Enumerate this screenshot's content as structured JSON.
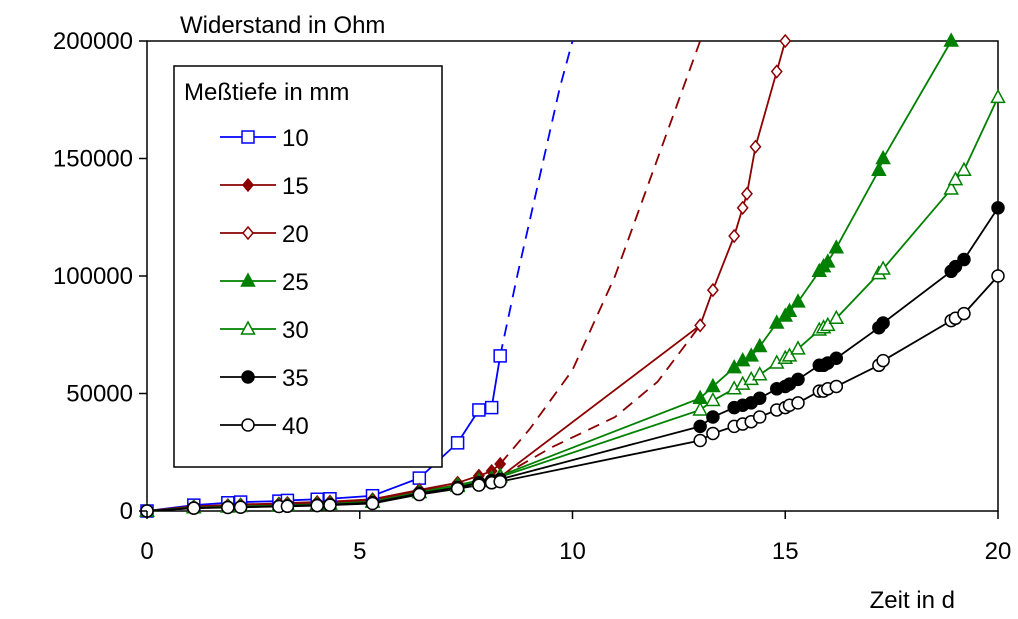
{
  "chart_data": {
    "type": "line",
    "title": "",
    "ylabel": "Widerstand in Ohm",
    "xlabel": "Zeit in d",
    "xlim": [
      0,
      20
    ],
    "ylim": [
      0,
      200000
    ],
    "x_ticks": [
      0,
      5,
      10,
      15,
      20
    ],
    "y_ticks": [
      0,
      50000,
      100000,
      150000,
      200000
    ],
    "x_tick_labels": [
      "0",
      "5",
      "10",
      "15",
      "20"
    ],
    "y_tick_labels": [
      "0",
      "50000",
      "100000",
      "150000",
      "200000"
    ],
    "grid": false,
    "legend": {
      "title": "Meßtiefe in mm",
      "placement": "upper-left"
    },
    "series": [
      {
        "name": "10",
        "color": "#0000ff",
        "marker": "square-open",
        "points": [
          [
            0,
            0
          ],
          [
            1.1,
            2500
          ],
          [
            1.9,
            3500
          ],
          [
            2.2,
            3800
          ],
          [
            3.1,
            4200
          ],
          [
            3.3,
            4500
          ],
          [
            4.0,
            5000
          ],
          [
            4.3,
            5200
          ],
          [
            5.3,
            6500
          ],
          [
            6.4,
            14000
          ],
          [
            7.3,
            29000
          ],
          [
            7.8,
            43000
          ],
          [
            8.1,
            44000
          ],
          [
            8.3,
            66000
          ]
        ],
        "extrapolation": [
          [
            8.3,
            66000
          ],
          [
            8.7,
            100000
          ],
          [
            9.2,
            140000
          ],
          [
            9.7,
            180000
          ],
          [
            10.0,
            200000
          ]
        ]
      },
      {
        "name": "15",
        "color": "#8b0000",
        "marker": "diamond-filled",
        "points": [
          [
            0,
            0
          ],
          [
            1.1,
            2000
          ],
          [
            1.9,
            2500
          ],
          [
            2.2,
            2800
          ],
          [
            3.1,
            3200
          ],
          [
            3.3,
            3400
          ],
          [
            4.0,
            3800
          ],
          [
            4.3,
            4000
          ],
          [
            5.3,
            5000
          ],
          [
            6.4,
            9000
          ],
          [
            7.3,
            12000
          ],
          [
            7.8,
            15000
          ],
          [
            8.1,
            17000
          ],
          [
            8.3,
            20000
          ]
        ],
        "extrapolation": [
          [
            8.3,
            20000
          ],
          [
            9.0,
            35000
          ],
          [
            10.0,
            60000
          ],
          [
            11.0,
            100000
          ],
          [
            12.0,
            150000
          ],
          [
            13.0,
            200000
          ]
        ]
      },
      {
        "name": "20",
        "color": "#8b0000",
        "marker": "diamond-open",
        "points": [
          [
            0,
            0
          ],
          [
            1.1,
            1800
          ],
          [
            1.9,
            2200
          ],
          [
            2.2,
            2400
          ],
          [
            3.1,
            2800
          ],
          [
            3.3,
            3000
          ],
          [
            4.0,
            3400
          ],
          [
            4.3,
            3600
          ],
          [
            5.3,
            4500
          ],
          [
            6.4,
            8500
          ],
          [
            7.3,
            11000
          ],
          [
            7.8,
            13000
          ],
          [
            8.1,
            14000
          ],
          [
            8.3,
            14500
          ],
          [
            13.0,
            79000
          ],
          [
            13.3,
            94000
          ],
          [
            13.8,
            117000
          ],
          [
            14.0,
            129000
          ],
          [
            14.1,
            135000
          ],
          [
            14.3,
            155000
          ],
          [
            14.8,
            187000
          ],
          [
            15.0,
            200000
          ]
        ],
        "extrapolation": [
          [
            8.3,
            14500
          ],
          [
            9.5,
            27000
          ],
          [
            11.0,
            40000
          ],
          [
            12.0,
            55000
          ],
          [
            13.0,
            79000
          ]
        ]
      },
      {
        "name": "25",
        "color": "#008000",
        "marker": "triangle-filled",
        "points": [
          [
            0,
            0
          ],
          [
            1.1,
            1500
          ],
          [
            1.9,
            1800
          ],
          [
            2.2,
            2000
          ],
          [
            3.1,
            2300
          ],
          [
            3.3,
            2500
          ],
          [
            4.0,
            2800
          ],
          [
            4.3,
            3000
          ],
          [
            5.3,
            4000
          ],
          [
            6.4,
            8000
          ],
          [
            7.3,
            11000
          ],
          [
            7.8,
            13000
          ],
          [
            8.1,
            14000
          ],
          [
            8.3,
            15000
          ],
          [
            13.0,
            48000
          ],
          [
            13.3,
            53000
          ],
          [
            13.8,
            61000
          ],
          [
            14.0,
            64000
          ],
          [
            14.2,
            66000
          ],
          [
            14.4,
            70000
          ],
          [
            14.8,
            80000
          ],
          [
            15.0,
            83000
          ],
          [
            15.1,
            85000
          ],
          [
            15.3,
            89000
          ],
          [
            15.8,
            102000
          ],
          [
            15.9,
            104000
          ],
          [
            16.0,
            106000
          ],
          [
            16.2,
            112000
          ],
          [
            17.2,
            145000
          ],
          [
            17.3,
            150000
          ],
          [
            18.9,
            200000
          ]
        ]
      },
      {
        "name": "30",
        "color": "#008000",
        "marker": "triangle-open",
        "points": [
          [
            0,
            0
          ],
          [
            1.1,
            1400
          ],
          [
            1.9,
            1700
          ],
          [
            2.2,
            1900
          ],
          [
            3.1,
            2200
          ],
          [
            3.3,
            2400
          ],
          [
            4.0,
            2700
          ],
          [
            4.3,
            2900
          ],
          [
            5.3,
            3800
          ],
          [
            6.4,
            7800
          ],
          [
            7.3,
            10500
          ],
          [
            7.8,
            12500
          ],
          [
            8.1,
            13500
          ],
          [
            8.3,
            14500
          ],
          [
            13.0,
            43000
          ],
          [
            13.3,
            47000
          ],
          [
            13.8,
            52000
          ],
          [
            14.0,
            54000
          ],
          [
            14.2,
            56000
          ],
          [
            14.4,
            58000
          ],
          [
            14.8,
            63000
          ],
          [
            15.0,
            65000
          ],
          [
            15.1,
            66000
          ],
          [
            15.3,
            69000
          ],
          [
            15.8,
            77000
          ],
          [
            15.9,
            78000
          ],
          [
            16.0,
            79000
          ],
          [
            16.2,
            82000
          ],
          [
            17.2,
            101000
          ],
          [
            17.3,
            103000
          ],
          [
            18.9,
            137000
          ],
          [
            19.0,
            141000
          ],
          [
            19.2,
            145000
          ],
          [
            20.0,
            176000
          ]
        ]
      },
      {
        "name": "35",
        "color": "#000000",
        "marker": "circle-filled",
        "points": [
          [
            0,
            0
          ],
          [
            1.1,
            1300
          ],
          [
            1.9,
            1600
          ],
          [
            2.2,
            1700
          ],
          [
            3.1,
            2000
          ],
          [
            3.3,
            2200
          ],
          [
            4.0,
            2500
          ],
          [
            4.3,
            2700
          ],
          [
            5.3,
            3500
          ],
          [
            6.4,
            7500
          ],
          [
            7.3,
            10000
          ],
          [
            7.8,
            12000
          ],
          [
            8.1,
            13000
          ],
          [
            8.3,
            13500
          ],
          [
            13.0,
            36000
          ],
          [
            13.3,
            40000
          ],
          [
            13.8,
            44000
          ],
          [
            14.0,
            45000
          ],
          [
            14.2,
            46000
          ],
          [
            14.4,
            48000
          ],
          [
            14.8,
            52000
          ],
          [
            15.0,
            53000
          ],
          [
            15.1,
            54000
          ],
          [
            15.3,
            56000
          ],
          [
            15.8,
            62000
          ],
          [
            15.9,
            62000
          ],
          [
            16.0,
            63000
          ],
          [
            16.2,
            65000
          ],
          [
            17.2,
            78000
          ],
          [
            17.3,
            80000
          ],
          [
            18.9,
            102000
          ],
          [
            19.0,
            104000
          ],
          [
            19.2,
            107000
          ],
          [
            20.0,
            129000
          ]
        ]
      },
      {
        "name": "40",
        "color": "#000000",
        "marker": "circle-open",
        "points": [
          [
            0,
            0
          ],
          [
            1.1,
            1200
          ],
          [
            1.9,
            1500
          ],
          [
            2.2,
            1600
          ],
          [
            3.1,
            1900
          ],
          [
            3.3,
            2000
          ],
          [
            4.0,
            2300
          ],
          [
            4.3,
            2500
          ],
          [
            5.3,
            3200
          ],
          [
            6.4,
            7000
          ],
          [
            7.3,
            9500
          ],
          [
            7.8,
            11000
          ],
          [
            8.1,
            12000
          ],
          [
            8.3,
            12500
          ],
          [
            13.0,
            30000
          ],
          [
            13.3,
            33000
          ],
          [
            13.8,
            36000
          ],
          [
            14.0,
            37000
          ],
          [
            14.2,
            38000
          ],
          [
            14.4,
            40000
          ],
          [
            14.8,
            43000
          ],
          [
            15.0,
            44000
          ],
          [
            15.1,
            45000
          ],
          [
            15.3,
            46000
          ],
          [
            15.8,
            51000
          ],
          [
            15.9,
            51000
          ],
          [
            16.0,
            52000
          ],
          [
            16.2,
            53000
          ],
          [
            17.2,
            62000
          ],
          [
            17.3,
            64000
          ],
          [
            18.9,
            81000
          ],
          [
            19.0,
            82000
          ],
          [
            19.2,
            84000
          ],
          [
            20.0,
            100000
          ]
        ]
      }
    ]
  }
}
